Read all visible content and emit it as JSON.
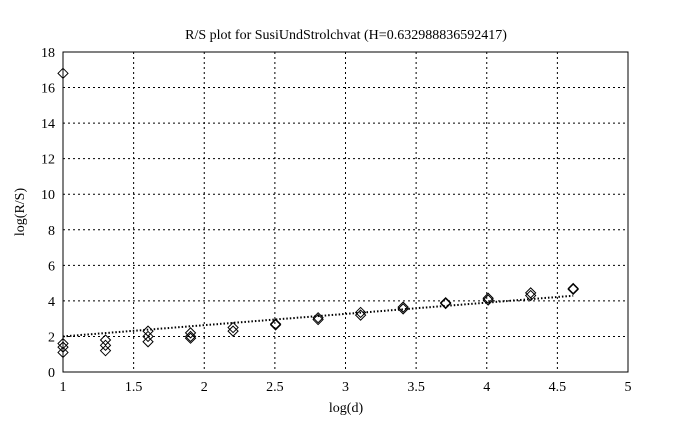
{
  "chart_data": {
    "type": "scatter",
    "title": "R/S plot for SusiUndStrolchvat (H=0.632988836592417)",
    "xlabel": "log(d)",
    "ylabel": "log(R/S)",
    "xlim": [
      1,
      5
    ],
    "ylim": [
      0,
      18
    ],
    "xticks": [
      "1",
      "1.5",
      "2",
      "2.5",
      "3",
      "3.5",
      "4",
      "4.5",
      "5"
    ],
    "yticks": [
      "0",
      "2",
      "4",
      "6",
      "8",
      "10",
      "12",
      "14",
      "16",
      "18"
    ],
    "grid": true,
    "marker": "diamond",
    "points": [
      [
        1,
        16.8
      ],
      [
        1,
        1.6
      ],
      [
        1,
        1.4
      ],
      [
        1,
        1.1
      ],
      [
        1.301,
        1.8
      ],
      [
        1.301,
        1.5
      ],
      [
        1.301,
        1.2
      ],
      [
        1.602,
        2.3
      ],
      [
        1.602,
        2.0
      ],
      [
        1.602,
        1.7
      ],
      [
        1.903,
        2.2
      ],
      [
        1.903,
        2.0
      ],
      [
        1.903,
        1.9
      ],
      [
        2.204,
        2.5
      ],
      [
        2.204,
        2.3
      ],
      [
        2.505,
        2.7
      ],
      [
        2.505,
        2.65
      ],
      [
        2.806,
        3.05
      ],
      [
        2.806,
        2.95
      ],
      [
        3.107,
        3.35
      ],
      [
        3.107,
        3.2
      ],
      [
        3.408,
        3.65
      ],
      [
        3.408,
        3.55
      ],
      [
        3.709,
        3.9
      ],
      [
        3.709,
        3.85
      ],
      [
        4.01,
        4.15
      ],
      [
        4.01,
        4.05
      ],
      [
        4.311,
        4.45
      ],
      [
        4.311,
        4.3
      ],
      [
        4.612,
        4.7
      ],
      [
        4.612,
        4.65
      ]
    ],
    "fit_line": {
      "x": [
        1,
        4.612
      ],
      "y": [
        2.0,
        4.29
      ],
      "style": "dotted"
    }
  }
}
